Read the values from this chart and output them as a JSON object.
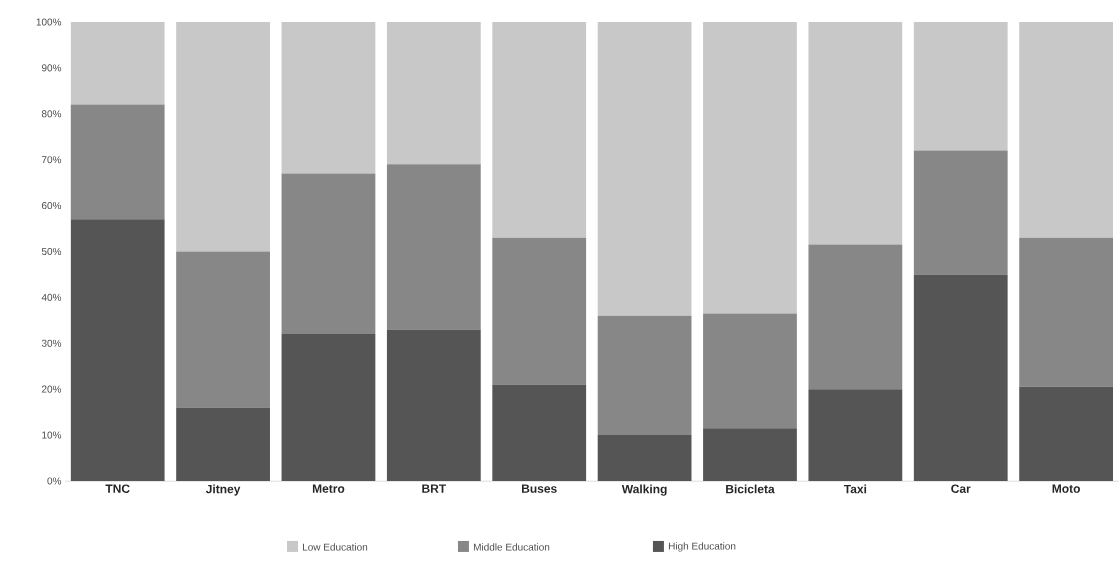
{
  "chart_data": {
    "type": "bar",
    "stacked": true,
    "categories": [
      "TNC",
      "Jitney",
      "Metro",
      "BRT",
      "Buses",
      "Walking",
      "Bicicleta",
      "Taxi",
      "Car",
      "Moto"
    ],
    "series": [
      {
        "name": "High Education",
        "color": "#555555",
        "values": [
          57,
          16,
          32,
          33,
          21,
          10,
          11.5,
          20,
          45,
          20.5
        ]
      },
      {
        "name": "Middle Education",
        "color": "#878787",
        "values": [
          25,
          34,
          35,
          36,
          32,
          26,
          25,
          31.5,
          27,
          32.5
        ]
      },
      {
        "name": "Low Education",
        "color": "#c8c8c8",
        "values": [
          18,
          50,
          33,
          31,
          47,
          64,
          63.5,
          48.5,
          28,
          47
        ]
      }
    ],
    "ylim": [
      0,
      100
    ],
    "yticks": [
      {
        "value": 0,
        "label": "0%"
      },
      {
        "value": 10,
        "label": "10%"
      },
      {
        "value": 20,
        "label": "20%"
      },
      {
        "value": 30,
        "label": "30%"
      },
      {
        "value": 40,
        "label": "40%"
      },
      {
        "value": 50,
        "label": "50%"
      },
      {
        "value": 60,
        "label": "60%"
      },
      {
        "value": 70,
        "label": "70%"
      },
      {
        "value": 80,
        "label": "80%"
      },
      {
        "value": 90,
        "label": "90%"
      },
      {
        "value": 100,
        "label": "100%"
      }
    ],
    "legend": "bottom"
  }
}
